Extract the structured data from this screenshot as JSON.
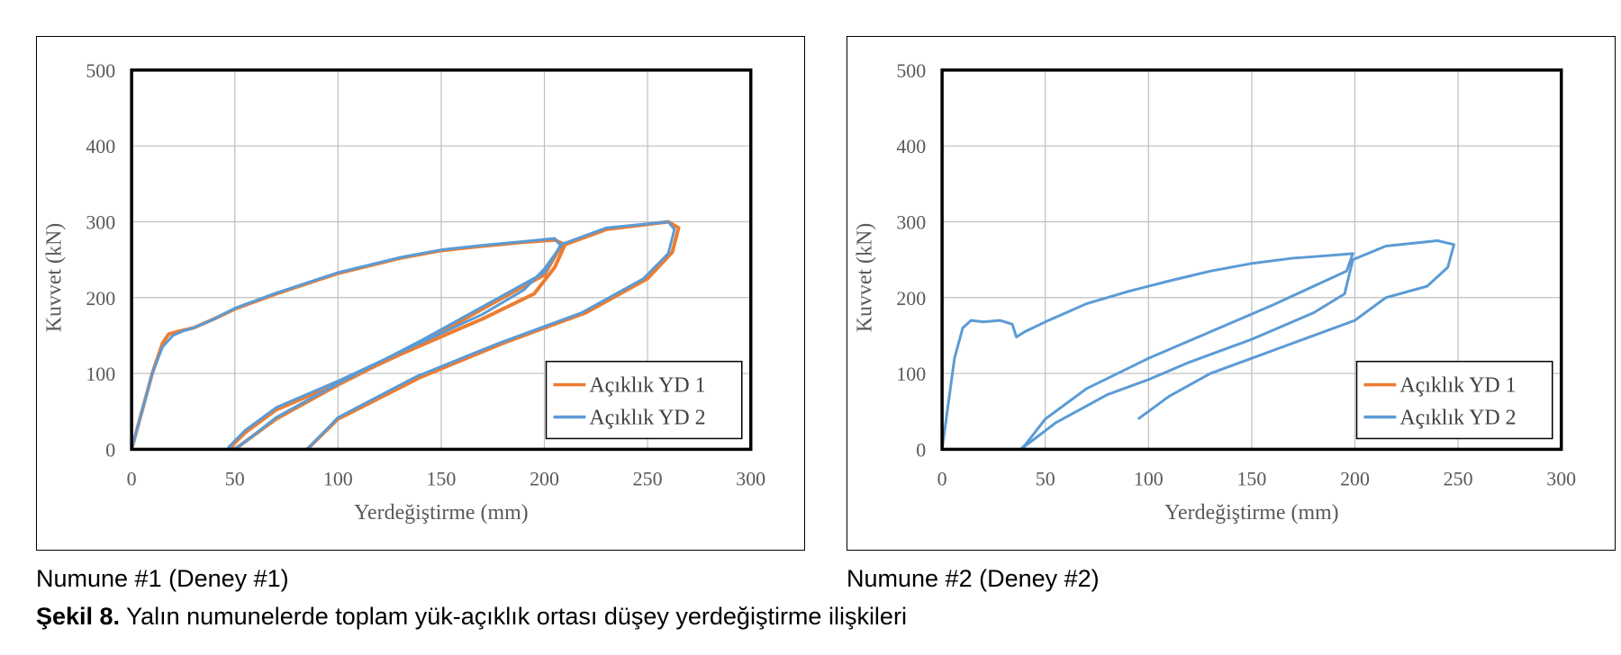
{
  "colors": {
    "series1": "#ED7D31",
    "series2": "#5B9BD5",
    "grid": "#BFBFBF",
    "frame": "#000000"
  },
  "captions": {
    "panel1": "Numune #1 (Deney #1)",
    "panel2": "Numune #2 (Deney #2)",
    "figure_label": "Şekil 8.",
    "figure_text": "Yalın numunelerde toplam yük-açıklık ortası düşey yerdeğiştirme ilişkileri"
  },
  "chart_data": [
    {
      "type": "line",
      "xlabel": "Yerdeğiştirme (mm)",
      "ylabel": "Kuvvet (kN)",
      "xlim": [
        0,
        300
      ],
      "ylim": [
        0,
        500
      ],
      "xticks": [
        "0",
        "50",
        "100",
        "150",
        "200",
        "250",
        "300"
      ],
      "yticks": [
        "0",
        "100",
        "200",
        "300",
        "400",
        "500"
      ],
      "grid": true,
      "legend_position": "bottom-right",
      "series": [
        {
          "name": "Açıklık YD 1",
          "points": [
            [
              0,
              0
            ],
            [
              5,
              50
            ],
            [
              10,
              100
            ],
            [
              15,
              140
            ],
            [
              18,
              152
            ],
            [
              22,
              155
            ],
            [
              30,
              160
            ],
            [
              40,
              172
            ],
            [
              50,
              185
            ],
            [
              70,
              205
            ],
            [
              100,
              232
            ],
            [
              130,
              252
            ],
            [
              150,
              262
            ],
            [
              170,
              268
            ],
            [
              190,
              273
            ],
            [
              205,
              276
            ],
            [
              210,
              270
            ],
            [
              205,
              240
            ],
            [
              195,
              205
            ],
            [
              170,
              172
            ],
            [
              130,
              125
            ],
            [
              100,
              87
            ],
            [
              70,
              52
            ],
            [
              55,
              22
            ],
            [
              48,
              3
            ],
            [
              50,
              0
            ],
            [
              55,
              10
            ],
            [
              70,
              40
            ],
            [
              100,
              85
            ],
            [
              140,
              140
            ],
            [
              180,
              200
            ],
            [
              200,
              230
            ],
            [
              208,
              268
            ],
            [
              230,
              290
            ],
            [
              260,
              300
            ],
            [
              265,
              292
            ],
            [
              262,
              260
            ],
            [
              250,
              225
            ],
            [
              220,
              180
            ],
            [
              180,
              140
            ],
            [
              140,
              95
            ],
            [
              100,
              40
            ],
            [
              85,
              0
            ]
          ]
        },
        {
          "name": "Açıklık YD 2",
          "points": [
            [
              0,
              0
            ],
            [
              5,
              50
            ],
            [
              10,
              100
            ],
            [
              15,
              135
            ],
            [
              20,
              150
            ],
            [
              25,
              156
            ],
            [
              30,
              160
            ],
            [
              40,
              172
            ],
            [
              50,
              186
            ],
            [
              70,
              206
            ],
            [
              100,
              233
            ],
            [
              130,
              253
            ],
            [
              150,
              263
            ],
            [
              170,
              269
            ],
            [
              190,
              274
            ],
            [
              205,
              278
            ],
            [
              208,
              268
            ],
            [
              200,
              238
            ],
            [
              190,
              210
            ],
            [
              170,
              178
            ],
            [
              130,
              128
            ],
            [
              100,
              90
            ],
            [
              70,
              55
            ],
            [
              55,
              25
            ],
            [
              47,
              3
            ],
            [
              50,
              0
            ],
            [
              55,
              10
            ],
            [
              70,
              42
            ],
            [
              100,
              87
            ],
            [
              140,
              143
            ],
            [
              180,
              203
            ],
            [
              200,
              233
            ],
            [
              208,
              270
            ],
            [
              230,
              292
            ],
            [
              260,
              300
            ],
            [
              263,
              290
            ],
            [
              260,
              258
            ],
            [
              248,
              225
            ],
            [
              218,
              180
            ],
            [
              178,
              140
            ],
            [
              138,
              96
            ],
            [
              100,
              42
            ],
            [
              85,
              0
            ]
          ]
        }
      ]
    },
    {
      "type": "line",
      "xlabel": "Yerdeğiştirme (mm)",
      "ylabel": "Kuvvet (kN)",
      "xlim": [
        0,
        300
      ],
      "ylim": [
        0,
        500
      ],
      "xticks": [
        "0",
        "50",
        "100",
        "150",
        "200",
        "250",
        "300"
      ],
      "yticks": [
        "0",
        "100",
        "200",
        "300",
        "400",
        "500"
      ],
      "grid": true,
      "legend_position": "bottom-right",
      "series": [
        {
          "name": "Açıklık YD 1",
          "points": []
        },
        {
          "name": "Açıklık YD 2",
          "points": [
            [
              0,
              0
            ],
            [
              3,
              60
            ],
            [
              6,
              120
            ],
            [
              10,
              160
            ],
            [
              14,
              170
            ],
            [
              20,
              168
            ],
            [
              28,
              170
            ],
            [
              34,
              165
            ],
            [
              36,
              148
            ],
            [
              40,
              155
            ],
            [
              50,
              168
            ],
            [
              70,
              192
            ],
            [
              90,
              208
            ],
            [
              110,
              222
            ],
            [
              130,
              235
            ],
            [
              150,
              245
            ],
            [
              170,
              252
            ],
            [
              185,
              255
            ],
            [
              199,
              258
            ],
            [
              196,
              235
            ],
            [
              180,
              215
            ],
            [
              160,
              190
            ],
            [
              130,
              155
            ],
            [
              100,
              120
            ],
            [
              70,
              80
            ],
            [
              50,
              40
            ],
            [
              40,
              5
            ],
            [
              38,
              0
            ],
            [
              42,
              8
            ],
            [
              55,
              35
            ],
            [
              80,
              72
            ],
            [
              100,
              92
            ],
            [
              120,
              115
            ],
            [
              150,
              145
            ],
            [
              180,
              180
            ],
            [
              195,
              205
            ],
            [
              199,
              250
            ],
            [
              215,
              268
            ],
            [
              240,
              275
            ],
            [
              248,
              270
            ],
            [
              245,
              240
            ],
            [
              235,
              215
            ],
            [
              215,
              200
            ],
            [
              200,
              170
            ],
            [
              180,
              150
            ],
            [
              160,
              130
            ],
            [
              130,
              100
            ],
            [
              110,
              70
            ],
            [
              95,
              40
            ]
          ]
        }
      ]
    }
  ]
}
